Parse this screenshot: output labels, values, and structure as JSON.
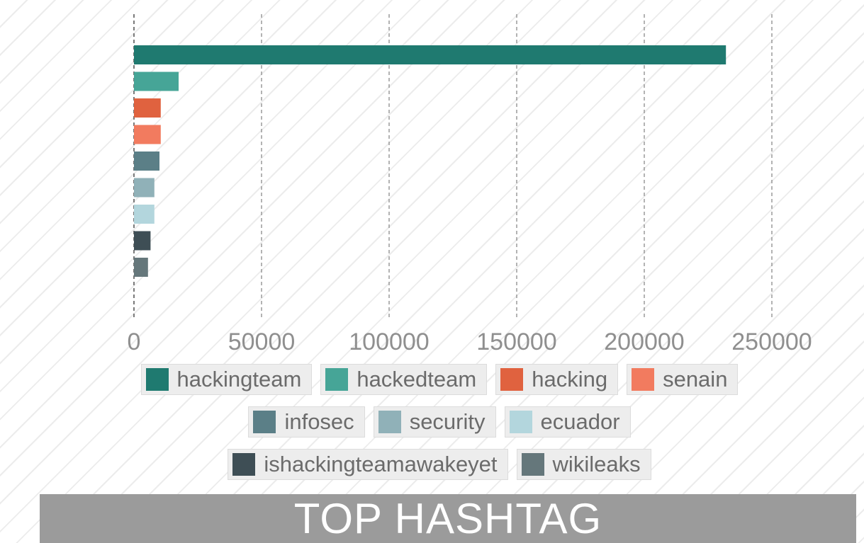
{
  "chart_data": {
    "type": "bar",
    "orientation": "horizontal",
    "title": "TOP HASHTAG",
    "xlim": [
      0,
      260000
    ],
    "x_ticks": [
      "0",
      "50000",
      "100000",
      "150000",
      "200000",
      "250000"
    ],
    "x_tick_values": [
      0,
      50000,
      100000,
      150000,
      200000,
      250000
    ],
    "grid": "vertical dashed",
    "legend_position": "bottom",
    "series": [
      {
        "name": "hackingteam",
        "value": 232000,
        "color": "#1f7a70"
      },
      {
        "name": "hackedteam",
        "value": 17500,
        "color": "#46a597"
      },
      {
        "name": "hacking",
        "value": 10500,
        "color": "#e0623f"
      },
      {
        "name": "senain",
        "value": 10500,
        "color": "#f27b5f"
      },
      {
        "name": "infosec",
        "value": 10000,
        "color": "#5b7f87"
      },
      {
        "name": "security",
        "value": 8000,
        "color": "#90b1b8"
      },
      {
        "name": "ecuador",
        "value": 8000,
        "color": "#b3d6dd"
      },
      {
        "name": "ishackingteamawakeyet",
        "value": 6500,
        "color": "#3e4e55"
      },
      {
        "name": "wikileaks",
        "value": 5500,
        "color": "#65777b"
      }
    ],
    "legend_rows": [
      [
        "hackingteam",
        "hackedteam",
        "hacking",
        "senain"
      ],
      [
        "infosec",
        "security",
        "ecuador"
      ],
      [
        "ishackingteamawakeyet",
        "wikileaks"
      ]
    ]
  }
}
